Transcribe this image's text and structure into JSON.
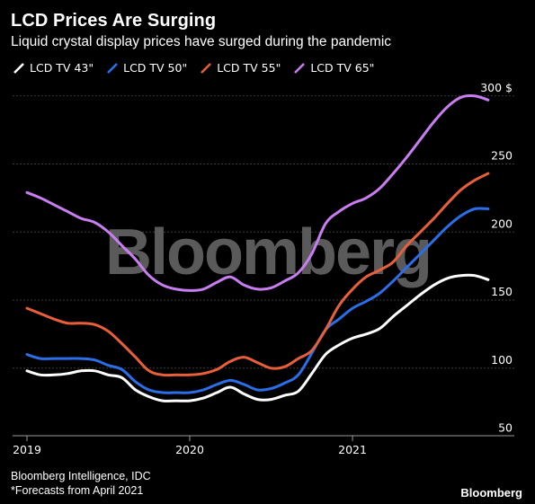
{
  "header": {
    "title": "LCD Prices Are Surging",
    "subtitle": "Liquid crystal display prices have surged during the pandemic"
  },
  "watermark": "Bloomberg",
  "footer": {
    "source": "Bloomberg Intelligence, IDC",
    "note": "*Forecasts from April 2021",
    "brand": "Bloomberg"
  },
  "colors": {
    "background": "#000000",
    "grid": "#3c3c3c",
    "text": "#ffffff",
    "watermark": "#5a5a5a"
  },
  "chart_data": {
    "type": "line",
    "title": "LCD Prices Are Surging",
    "subtitle": "Liquid crystal display prices have surged during the pandemic",
    "y_unit": "$",
    "ylim": [
      50,
      300
    ],
    "yticks": [
      50,
      100,
      150,
      200,
      250,
      300
    ],
    "ytick_labels": [
      "50",
      "100",
      "150",
      "200",
      "250",
      "300 $"
    ],
    "xlim": [
      "2019-01",
      "2021-12"
    ],
    "xticks": [
      "2019-01",
      "2020-01",
      "2021-01"
    ],
    "xtick_labels": [
      "2019",
      "2020",
      "2021"
    ],
    "grid": true,
    "legend_position": "top-left",
    "x": [
      "2019-01",
      "2019-02",
      "2019-03",
      "2019-04",
      "2019-05",
      "2019-06",
      "2019-07",
      "2019-08",
      "2019-09",
      "2019-10",
      "2019-11",
      "2019-12",
      "2020-01",
      "2020-02",
      "2020-03",
      "2020-04",
      "2020-05",
      "2020-06",
      "2020-07",
      "2020-08",
      "2020-09",
      "2020-10",
      "2020-11",
      "2020-12",
      "2021-01",
      "2021-02",
      "2021-03",
      "2021-04",
      "2021-05",
      "2021-06",
      "2021-07",
      "2021-08",
      "2021-09",
      "2021-10",
      "2021-11"
    ],
    "series": [
      {
        "name": "LCD TV 43\"",
        "color": "#ffffff",
        "values": [
          98,
          95,
          95,
          96,
          98,
          98,
          95,
          93,
          84,
          79,
          76,
          76,
          76,
          78,
          82,
          86,
          81,
          77,
          77,
          80,
          83,
          96,
          110,
          117,
          122,
          125,
          129,
          138,
          146,
          154,
          161,
          166,
          168,
          168,
          165
        ]
      },
      {
        "name": "LCD TV 50\"",
        "color": "#2a6ee8",
        "values": [
          110,
          107,
          107,
          107,
          107,
          106,
          102,
          99,
          90,
          84,
          82,
          82,
          82,
          84,
          88,
          91,
          88,
          84,
          85,
          89,
          95,
          111,
          128,
          136,
          144,
          149,
          155,
          164,
          174,
          184,
          194,
          204,
          212,
          217,
          217
        ]
      },
      {
        "name": "LCD TV 55\"",
        "color": "#e85f3a",
        "values": [
          144,
          140,
          136,
          133,
          133,
          132,
          127,
          118,
          108,
          98,
          95,
          95,
          95,
          96,
          99,
          105,
          108,
          104,
          100,
          101,
          107,
          113,
          128,
          146,
          158,
          167,
          172,
          178,
          190,
          200,
          210,
          221,
          231,
          238,
          243
        ]
      },
      {
        "name": "LCD TV 65\"",
        "color": "#c87ef0",
        "values": [
          229,
          225,
          220,
          215,
          210,
          207,
          200,
          190,
          180,
          168,
          161,
          158,
          157,
          158,
          163,
          167,
          161,
          158,
          159,
          164,
          170,
          184,
          206,
          215,
          221,
          225,
          232,
          243,
          255,
          268,
          281,
          292,
          299,
          300,
          297
        ]
      }
    ]
  }
}
